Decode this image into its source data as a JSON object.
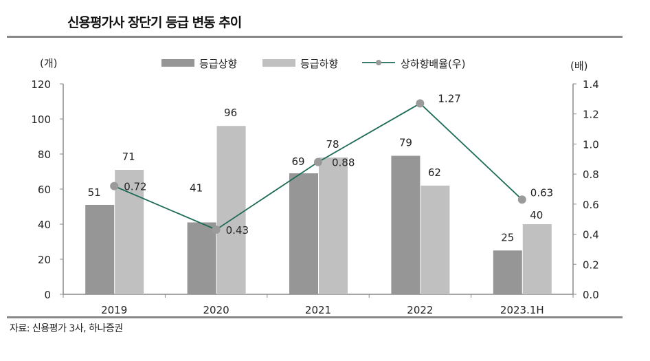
{
  "title": "신용평가사 장단기 등급 변동 추이",
  "source": "자료: 신용평가 3사, 하나증권",
  "chart_data": {
    "type": "bar",
    "categories": [
      "2019",
      "2020",
      "2021",
      "2022",
      "2023.1H"
    ],
    "series": [
      {
        "name": "등급상향",
        "type": "bar",
        "axis": "left",
        "color": "#969696",
        "values": [
          51,
          41,
          69,
          79,
          25
        ]
      },
      {
        "name": "등급하향",
        "type": "bar",
        "axis": "left",
        "color": "#c0c0c0",
        "values": [
          71,
          96,
          78,
          62,
          40
        ]
      },
      {
        "name": "상하향배율(우)",
        "type": "line",
        "axis": "right",
        "color": "#1e6b58",
        "marker_color": "#9a9a9a",
        "values": [
          0.72,
          0.43,
          0.88,
          1.27,
          0.63
        ]
      }
    ],
    "left_axis": {
      "label": "(개)",
      "ylim": [
        0,
        120
      ],
      "ticks": [
        "0",
        "20",
        "40",
        "60",
        "80",
        "100",
        "120"
      ]
    },
    "right_axis": {
      "label": "(배)",
      "ylim": [
        0,
        1.4
      ],
      "ticks": [
        "0.0",
        "0.2",
        "0.4",
        "0.6",
        "0.8",
        "1.0",
        "1.2",
        "1.4"
      ]
    },
    "legend": "top",
    "grid": false
  }
}
